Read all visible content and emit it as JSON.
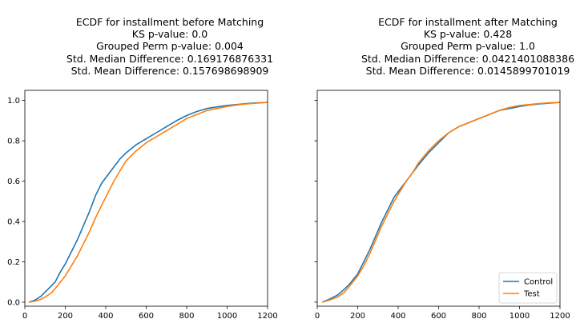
{
  "chart_data": [
    {
      "type": "line",
      "title_lines": [
        "ECDF for installment before Matching",
        "KS p-value: 0.0",
        "Grouped Perm p-value: 0.004",
        "Std. Median Difference: 0.169176876331",
        "Std. Mean Difference: 0.157698698909"
      ],
      "xlim": [
        0,
        1200
      ],
      "ylim": [
        -0.02,
        1.05
      ],
      "xticks": [
        0,
        200,
        400,
        600,
        800,
        1000,
        1200
      ],
      "yticks": [
        0.0,
        0.2,
        0.4,
        0.6,
        0.8,
        1.0
      ],
      "ytick_labels": [
        "0.0",
        "0.2",
        "0.4",
        "0.6",
        "0.8",
        "1.0"
      ],
      "series": [
        {
          "name": "Control",
          "color": "#1f77b4",
          "x": [
            20,
            50,
            80,
            100,
            120,
            150,
            170,
            200,
            230,
            260,
            290,
            320,
            350,
            380,
            410,
            440,
            470,
            500,
            550,
            600,
            650,
            700,
            750,
            800,
            850,
            900,
            950,
            1000,
            1050,
            1100,
            1150,
            1200
          ],
          "y": [
            0.0,
            0.01,
            0.03,
            0.05,
            0.07,
            0.1,
            0.14,
            0.19,
            0.25,
            0.31,
            0.38,
            0.45,
            0.53,
            0.59,
            0.63,
            0.67,
            0.71,
            0.74,
            0.78,
            0.81,
            0.84,
            0.87,
            0.9,
            0.925,
            0.945,
            0.96,
            0.968,
            0.975,
            0.98,
            0.985,
            0.988,
            0.99
          ]
        },
        {
          "name": "Test",
          "color": "#ff7f0e",
          "x": [
            20,
            50,
            80,
            100,
            130,
            160,
            200,
            230,
            260,
            290,
            320,
            350,
            380,
            410,
            440,
            470,
            500,
            550,
            600,
            650,
            700,
            750,
            800,
            850,
            900,
            950,
            1000,
            1050,
            1100,
            1150,
            1200
          ],
          "y": [
            0.0,
            0.005,
            0.015,
            0.025,
            0.045,
            0.08,
            0.13,
            0.18,
            0.23,
            0.29,
            0.35,
            0.42,
            0.48,
            0.54,
            0.6,
            0.65,
            0.7,
            0.75,
            0.79,
            0.82,
            0.85,
            0.88,
            0.91,
            0.93,
            0.95,
            0.96,
            0.97,
            0.978,
            0.983,
            0.987,
            0.99
          ]
        }
      ]
    },
    {
      "type": "line",
      "title_lines": [
        "ECDF for installment after Matching",
        "KS p-value: 0.428",
        "Grouped Perm p-value: 1.0",
        "Std. Median Difference: 0.0421401088386",
        "Std. Mean Difference: 0.0145899701019"
      ],
      "xlim": [
        0,
        1200
      ],
      "ylim": [
        -0.02,
        1.05
      ],
      "xticks": [
        0,
        200,
        400,
        600,
        800,
        1000,
        1200
      ],
      "yticks": [
        0.0,
        0.2,
        0.4,
        0.6,
        0.8,
        1.0
      ],
      "legend": {
        "position": "lower-right",
        "entries": [
          "Control",
          "Test"
        ]
      },
      "series": [
        {
          "name": "Control",
          "color": "#1f77b4",
          "x": [
            25,
            60,
            100,
            130,
            160,
            200,
            230,
            260,
            290,
            320,
            350,
            380,
            410,
            440,
            470,
            500,
            550,
            600,
            650,
            700,
            750,
            800,
            850,
            900,
            950,
            1000,
            1050,
            1100,
            1150,
            1200
          ],
          "y": [
            0.0,
            0.015,
            0.035,
            0.06,
            0.09,
            0.14,
            0.2,
            0.26,
            0.33,
            0.4,
            0.46,
            0.52,
            0.56,
            0.6,
            0.64,
            0.68,
            0.74,
            0.79,
            0.84,
            0.87,
            0.89,
            0.91,
            0.93,
            0.95,
            0.96,
            0.97,
            0.978,
            0.983,
            0.987,
            0.99
          ]
        },
        {
          "name": "Test",
          "color": "#ff7f0e",
          "x": [
            25,
            60,
            100,
            130,
            160,
            200,
            230,
            260,
            290,
            320,
            350,
            380,
            410,
            440,
            470,
            500,
            550,
            600,
            650,
            700,
            750,
            800,
            850,
            900,
            950,
            1000,
            1050,
            1100,
            1150,
            1200
          ],
          "y": [
            0.0,
            0.01,
            0.025,
            0.045,
            0.08,
            0.13,
            0.18,
            0.24,
            0.31,
            0.38,
            0.44,
            0.5,
            0.55,
            0.6,
            0.64,
            0.69,
            0.75,
            0.8,
            0.84,
            0.87,
            0.89,
            0.91,
            0.93,
            0.95,
            0.965,
            0.975,
            0.98,
            0.985,
            0.988,
            0.99
          ]
        }
      ]
    }
  ]
}
